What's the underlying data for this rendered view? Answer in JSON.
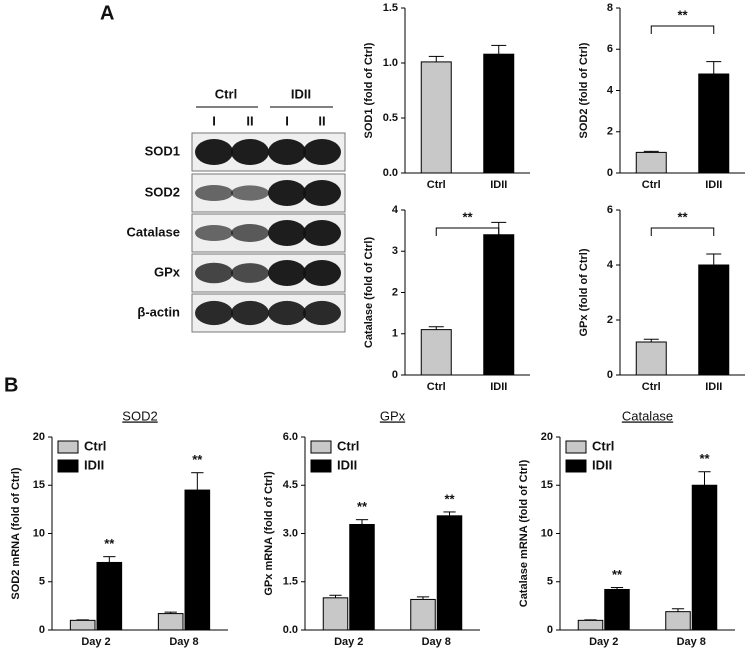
{
  "panels": {
    "a": "A",
    "b": "B"
  },
  "blot": {
    "groups": [
      "Ctrl",
      "IDII"
    ],
    "lanes": [
      "I",
      "II",
      "I",
      "II"
    ],
    "rows": [
      "SOD1",
      "SOD2",
      "Catalase",
      "GPx",
      "β-actin"
    ]
  },
  "chart_data": [
    {
      "type": "bar",
      "ylabel": "SOD1 (fold of Ctrl)",
      "categories": [
        "Ctrl",
        "IDII"
      ],
      "values": [
        1.01,
        1.08
      ],
      "errors": [
        0.05,
        0.08
      ],
      "colors": [
        "#c8c8c8",
        "#000000"
      ],
      "ylim": [
        0,
        1.5
      ],
      "yticks": [
        {
          "value": 0,
          "label": "0.0"
        },
        {
          "value": 0.5,
          "label": "0.5"
        },
        {
          "value": 1,
          "label": "1.0"
        },
        {
          "value": 1.5,
          "label": "1.5"
        }
      ]
    },
    {
      "type": "bar",
      "ylabel": "SOD2 (fold of Ctrl)",
      "categories": [
        "Ctrl",
        "IDII"
      ],
      "values": [
        1.0,
        4.8
      ],
      "errors": [
        0.05,
        0.6
      ],
      "colors": [
        "#c8c8c8",
        "#000000"
      ],
      "ylim": [
        0,
        8
      ],
      "yticks": [
        0,
        2,
        4,
        6,
        8
      ],
      "significance": "**"
    },
    {
      "type": "bar",
      "ylabel": "Catalase (fold of Ctrl)",
      "categories": [
        "Ctrl",
        "IDII"
      ],
      "values": [
        1.1,
        3.4
      ],
      "errors": [
        0.07,
        0.3
      ],
      "colors": [
        "#c8c8c8",
        "#000000"
      ],
      "ylim": [
        0,
        4
      ],
      "yticks": [
        0,
        1,
        2,
        3,
        4
      ],
      "significance": "**"
    },
    {
      "type": "bar",
      "ylabel": "GPx (fold of Ctrl)",
      "categories": [
        "Ctrl",
        "IDII"
      ],
      "values": [
        1.2,
        4.0
      ],
      "errors": [
        0.1,
        0.4
      ],
      "colors": [
        "#c8c8c8",
        "#000000"
      ],
      "ylim": [
        0,
        6
      ],
      "yticks": [
        0,
        2,
        4,
        6
      ],
      "significance": "**"
    },
    {
      "type": "bar",
      "title": "SOD2",
      "ylabel": "SOD2 mRNA (fold of Ctrl)",
      "categories": [
        "Day 2",
        "Day 8"
      ],
      "series": [
        {
          "name": "Ctrl",
          "color": "#c8c8c8",
          "values": [
            1.0,
            1.7
          ],
          "errors": [
            0.05,
            0.15
          ]
        },
        {
          "name": "IDII",
          "color": "#000000",
          "values": [
            7.0,
            14.5
          ],
          "errors": [
            0.6,
            1.8
          ],
          "annotations": [
            "**",
            "**"
          ]
        }
      ],
      "ylim": [
        0,
        20
      ],
      "yticks": [
        0,
        5,
        10,
        15,
        20
      ],
      "legend": "upper left"
    },
    {
      "type": "bar",
      "title": "GPx",
      "ylabel": "GPx mRNA (fold of Ctrl)",
      "categories": [
        "Day 2",
        "Day 8"
      ],
      "series": [
        {
          "name": "Ctrl",
          "color": "#c8c8c8",
          "values": [
            1.0,
            0.95
          ],
          "errors": [
            0.08,
            0.08
          ]
        },
        {
          "name": "IDII",
          "color": "#000000",
          "values": [
            3.28,
            3.55
          ],
          "errors": [
            0.15,
            0.12
          ],
          "annotations": [
            "**",
            "**"
          ]
        }
      ],
      "ylim": [
        0,
        6
      ],
      "yticks": [
        {
          "value": 0,
          "label": "0.0"
        },
        {
          "value": 1.5,
          "label": "1.5"
        },
        {
          "value": 3,
          "label": "3.0"
        },
        {
          "value": 4.5,
          "label": "4.5"
        },
        {
          "value": 6,
          "label": "6.0"
        }
      ],
      "legend": "upper left"
    },
    {
      "type": "bar",
      "title": "Catalase",
      "ylabel": "Catalase mRNA (fold of Ctrl)",
      "categories": [
        "Day 2",
        "Day 8"
      ],
      "series": [
        {
          "name": "Ctrl",
          "color": "#c8c8c8",
          "values": [
            1.0,
            1.9
          ],
          "errors": [
            0.05,
            0.3
          ]
        },
        {
          "name": "IDII",
          "color": "#000000",
          "values": [
            4.2,
            15.0
          ],
          "errors": [
            0.2,
            1.4
          ],
          "annotations": [
            "**",
            "**"
          ]
        }
      ],
      "ylim": [
        0,
        20
      ],
      "yticks": [
        0,
        5,
        10,
        15,
        20
      ],
      "legend": "upper left"
    }
  ]
}
